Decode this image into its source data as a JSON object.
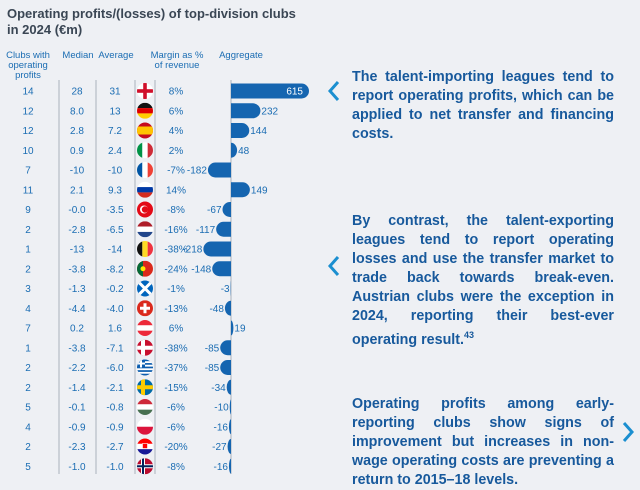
{
  "chart_data": {
    "type": "table",
    "title": "Operating profits/(losses) of top-division clubs in 2024 (€m)",
    "columns": [
      "Clubs with operating profits",
      "Median",
      "Average",
      "Margin as % of revenue",
      "Aggregate"
    ],
    "aggregate_bar_type": "bar",
    "rows": [
      {
        "flag": "england-flag-icon",
        "clubs": "14",
        "median": "28",
        "average": "31",
        "margin": "8%",
        "aggregate": 615
      },
      {
        "flag": "germany-flag-icon",
        "clubs": "12",
        "median": "8.0",
        "average": "13",
        "margin": "6%",
        "aggregate": 232
      },
      {
        "flag": "spain-flag-icon",
        "clubs": "12",
        "median": "2.8",
        "average": "7.2",
        "margin": "4%",
        "aggregate": 144
      },
      {
        "flag": "italy-flag-icon",
        "clubs": "10",
        "median": "0.9",
        "average": "2.4",
        "margin": "2%",
        "aggregate": 48
      },
      {
        "flag": "france-flag-icon",
        "clubs": "7",
        "median": "-10",
        "average": "-10",
        "margin": "-7%",
        "aggregate": -182
      },
      {
        "flag": "russia-flag-icon",
        "clubs": "11",
        "median": "2.1",
        "average": "9.3",
        "margin": "14%",
        "aggregate": 149
      },
      {
        "flag": "turkey-flag-icon",
        "clubs": "9",
        "median": "-0.0",
        "average": "-3.5",
        "margin": "-8%",
        "aggregate": -67
      },
      {
        "flag": "netherlands-flag-icon",
        "clubs": "2",
        "median": "-2.8",
        "average": "-6.5",
        "margin": "-16%",
        "aggregate": -117
      },
      {
        "flag": "belgium-flag-icon",
        "clubs": "1",
        "median": "-13",
        "average": "-14",
        "margin": "-38%",
        "aggregate": -218
      },
      {
        "flag": "portugal-flag-icon",
        "clubs": "2",
        "median": "-3.8",
        "average": "-8.2",
        "margin": "-24%",
        "aggregate": -148
      },
      {
        "flag": "scotland-flag-icon",
        "clubs": "3",
        "median": "-1.3",
        "average": "-0.2",
        "margin": "-1%",
        "aggregate": -3
      },
      {
        "flag": "switzerland-flag-icon",
        "clubs": "4",
        "median": "-4.4",
        "average": "-4.0",
        "margin": "-13%",
        "aggregate": -48
      },
      {
        "flag": "austria-flag-icon",
        "clubs": "7",
        "median": "0.2",
        "average": "1.6",
        "margin": "6%",
        "aggregate": 19
      },
      {
        "flag": "denmark-flag-icon",
        "clubs": "1",
        "median": "-3.8",
        "average": "-7.1",
        "margin": "-38%",
        "aggregate": -85
      },
      {
        "flag": "greece-flag-icon",
        "clubs": "2",
        "median": "-2.2",
        "average": "-6.0",
        "margin": "-37%",
        "aggregate": -85
      },
      {
        "flag": "sweden-flag-icon",
        "clubs": "2",
        "median": "-1.4",
        "average": "-2.1",
        "margin": "-15%",
        "aggregate": -34
      },
      {
        "flag": "hungary-flag-icon",
        "clubs": "5",
        "median": "-0.1",
        "average": "-0.8",
        "margin": "-6%",
        "aggregate": -10
      },
      {
        "flag": "poland-flag-icon",
        "clubs": "4",
        "median": "-0.9",
        "average": "-0.9",
        "margin": "-6%",
        "aggregate": -16
      },
      {
        "flag": "croatia-flag-icon",
        "clubs": "2",
        "median": "-2.3",
        "average": "-2.7",
        "margin": "-20%",
        "aggregate": -27
      },
      {
        "flag": "norway-flag-icon",
        "clubs": "5",
        "median": "-1.0",
        "average": "-1.0",
        "margin": "-8%",
        "aggregate": -16
      }
    ],
    "bar_color": "#1565b0"
  },
  "headers": {
    "clubs": "Clubs with operating profits",
    "median": "Median",
    "average": "Average",
    "margin": "Margin as % of revenue",
    "aggregate": "Aggregate"
  },
  "panels": [
    {
      "text": "The talent-importing leagues tend to report operating profits, which can be applied to net transfer and financing costs.",
      "icon": "chevron-left-icon"
    },
    {
      "text": "By contrast, the talent-exporting leagues tend to report operating losses and use the transfer market to trade back towards break-even. Austrian clubs were the exception in 2024, reporting their best-ever operating result.",
      "footnote": "43",
      "icon": "chevron-left-icon"
    },
    {
      "text": "Operating profits among early-reporting clubs show signs of improvement but increases in non-wage operating costs are preventing a return to 2015–18 levels.",
      "icon": "chevron-right-icon"
    }
  ]
}
